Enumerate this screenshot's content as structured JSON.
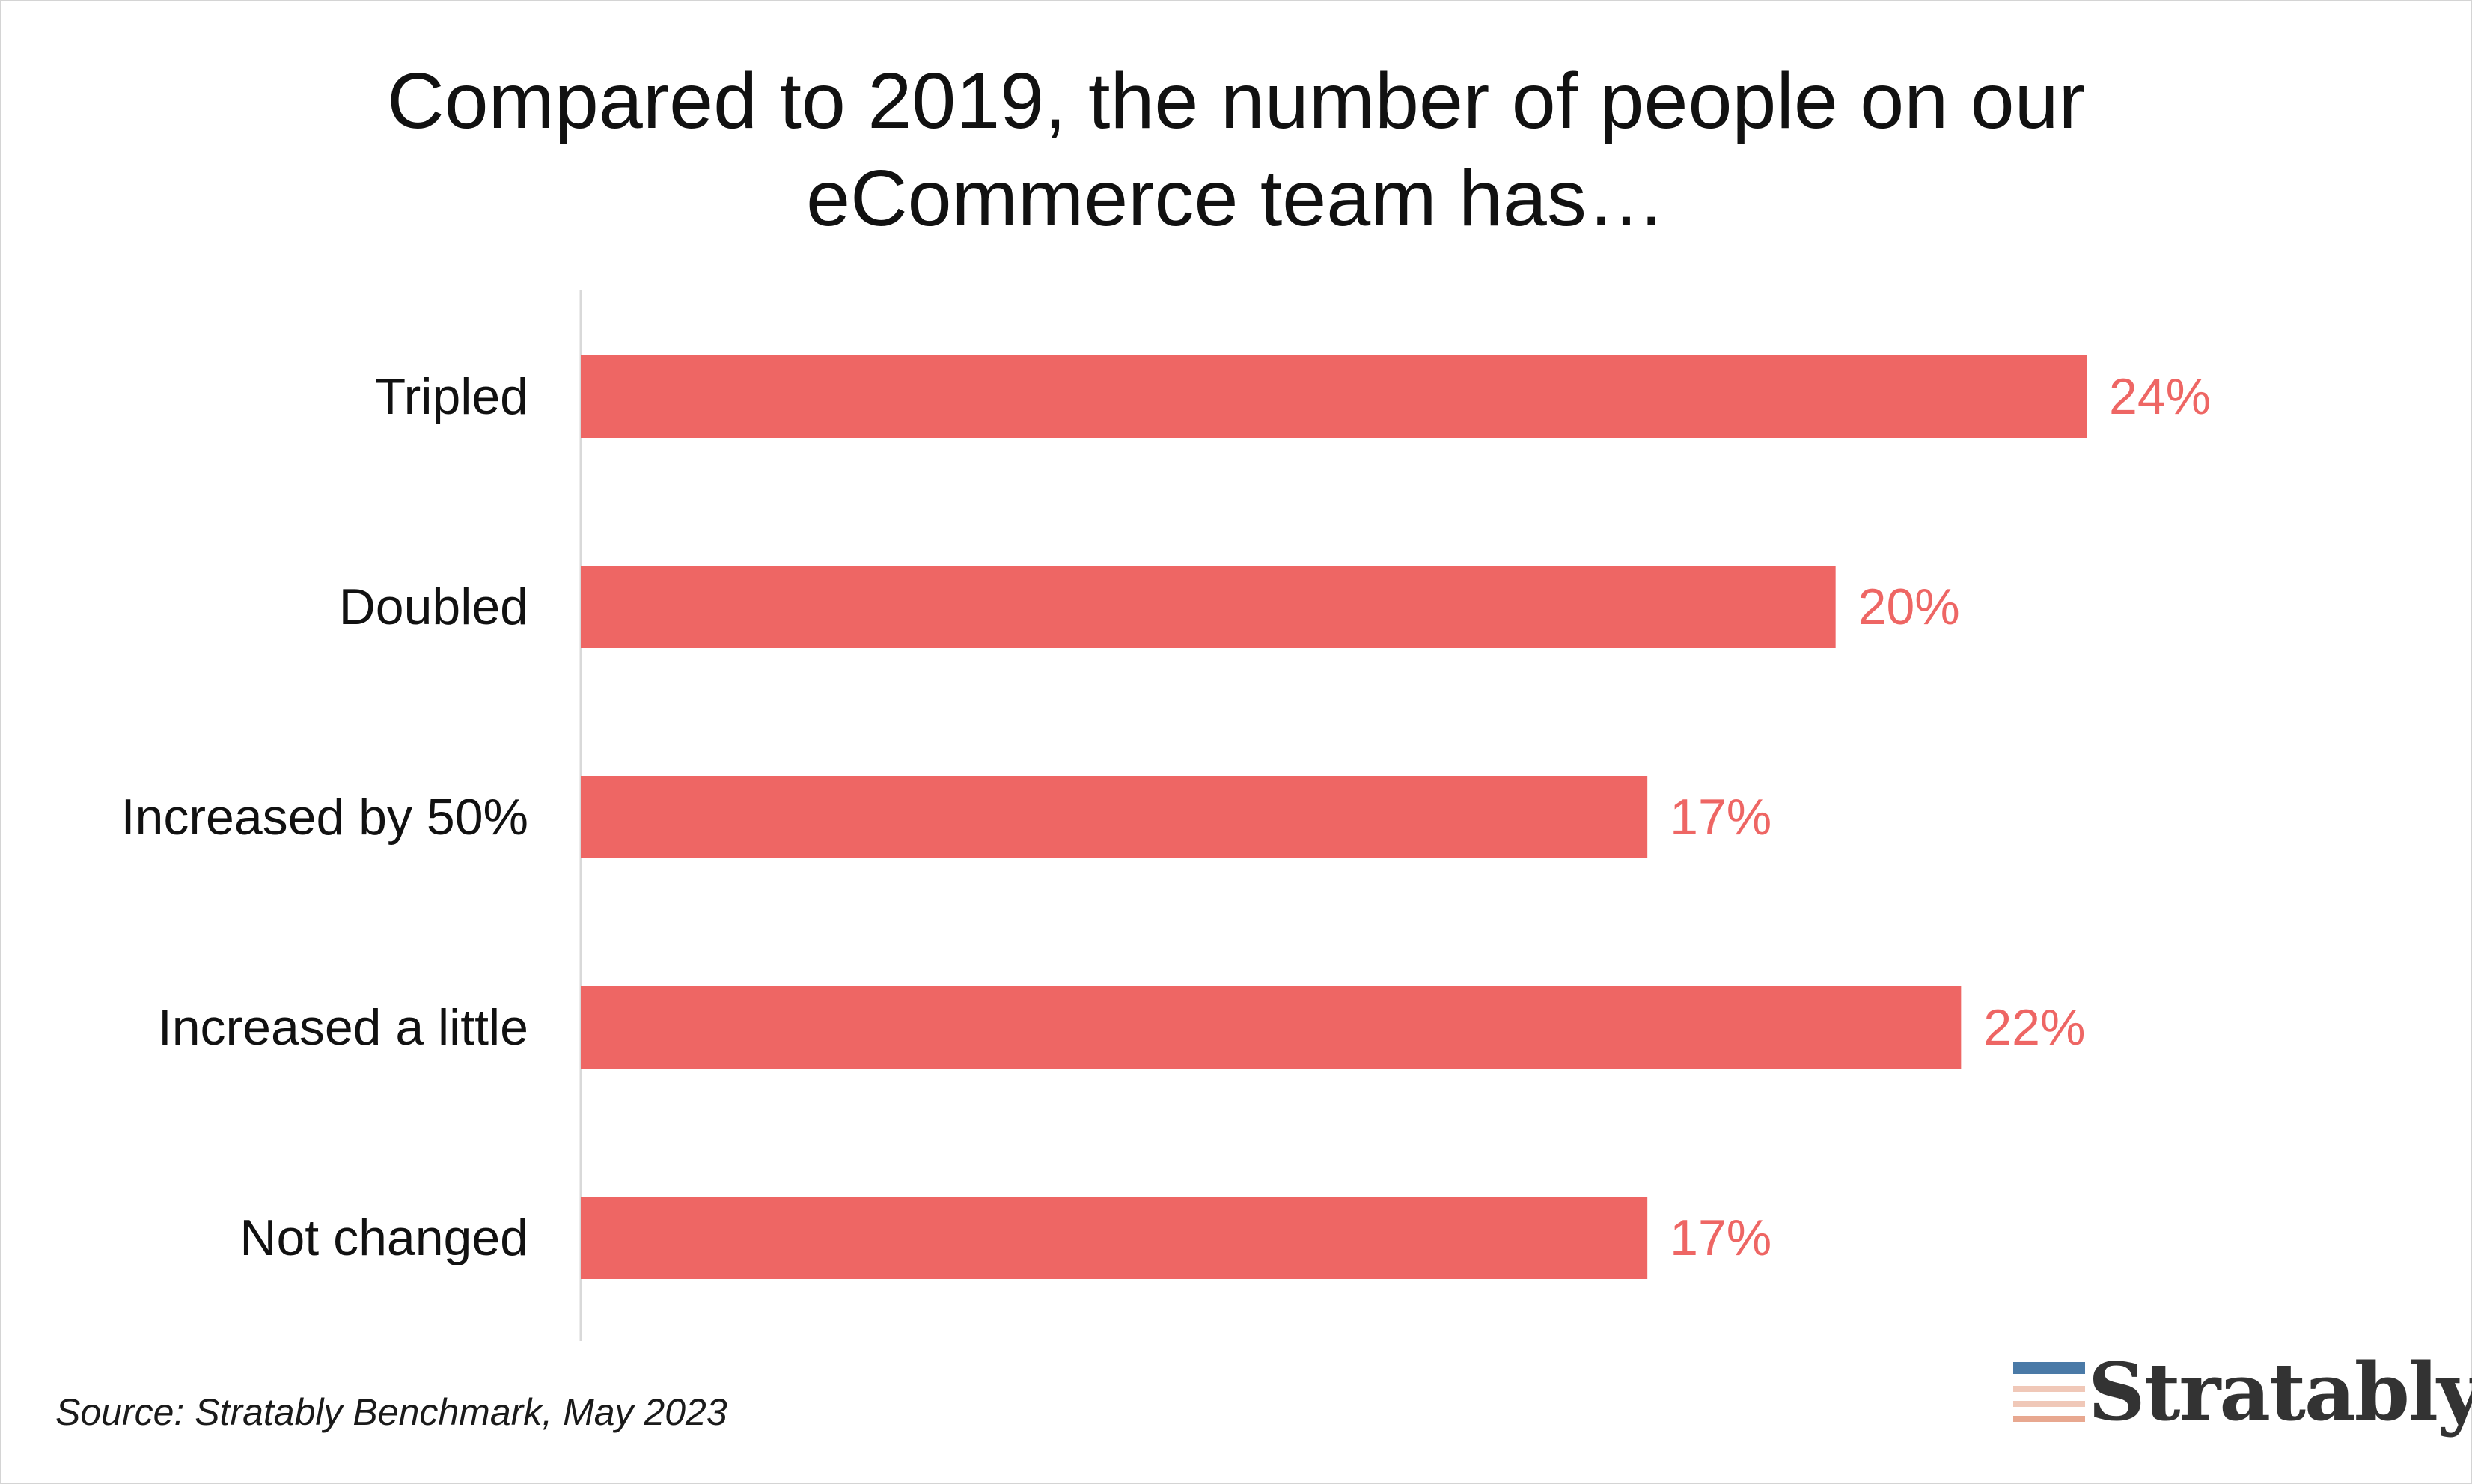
{
  "chart_data": {
    "type": "bar",
    "orientation": "horizontal",
    "title": "Compared to 2019, the number of people on our eCommerce team has…",
    "title_lines": [
      "Compared to 2019, the number of people on our",
      "eCommerce team has…"
    ],
    "categories": [
      "Tripled",
      "Doubled",
      "Increased by 50%",
      "Increased a little",
      "Not changed"
    ],
    "values": [
      24,
      20,
      17,
      22,
      17
    ],
    "data_labels": [
      "24%",
      "20%",
      "17%",
      "22%",
      "17%"
    ],
    "value_unit": "%",
    "xlim": [
      0,
      24
    ],
    "grid": false,
    "legend": "none",
    "bar_color": "#ee6664",
    "label_color": "#ee6664"
  },
  "footer": {
    "source": "Source: Stratably Benchmark, May 2023"
  },
  "logo": {
    "text": "Stratably",
    "mark_colors": [
      "#4a7aa7",
      "#f0c8b8",
      "#e8a890"
    ]
  }
}
